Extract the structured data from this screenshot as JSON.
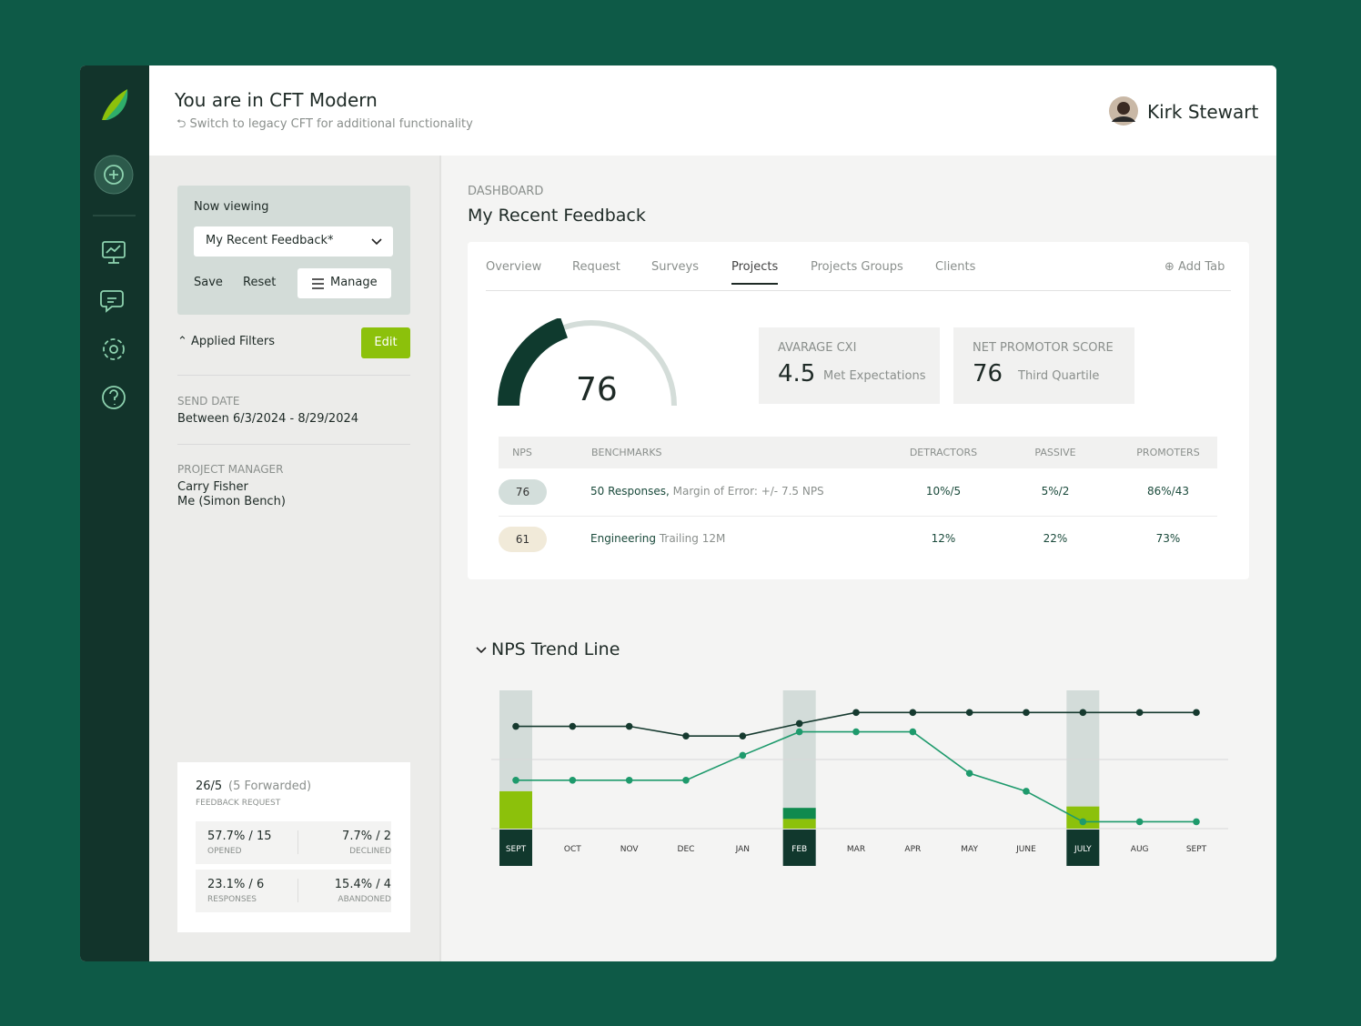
{
  "header": {
    "title": "You are in CFT Modern",
    "subtitle": "Switch to legacy CFT for additional functionality",
    "user": "Kirk Stewart"
  },
  "filters": {
    "now_viewing": "Now viewing",
    "view": "My Recent Feedback*",
    "save": "Save",
    "reset": "Reset",
    "manage": "Manage",
    "applied_filters": "Applied Filters",
    "edit": "Edit",
    "send_date": {
      "label": "SEND DATE",
      "value": "Between 6/3/2024 - 8/29/2024"
    },
    "project_manager": {
      "label": "PROJECT MANAGER",
      "values": [
        "Carry Fisher",
        "Me (Simon Bench)"
      ]
    }
  },
  "summary": {
    "count": "26/5",
    "forwarded": "(5 Forwarded)",
    "label": "FEEDBACK REQUEST",
    "stats": [
      {
        "value": "57.7% / 15",
        "label": "OPENED"
      },
      {
        "value": "7.7% / 2",
        "label": "DECLINED"
      },
      {
        "value": "23.1% / 6",
        "label": "RESPONSES"
      },
      {
        "value": "15.4% / 4",
        "label": "ABANDONED"
      }
    ]
  },
  "dashboard": {
    "breadcrumb": "DASHBOARD",
    "title": "My Recent Feedback",
    "tabs": [
      "Overview",
      "Request",
      "Surveys",
      "Projects",
      "Projects Groups",
      "Clients"
    ],
    "active_tab": 3,
    "add_tab": "Add Tab",
    "gauge_value": 76,
    "metrics": [
      {
        "label": "AVARAGE CXI",
        "value": 4.5,
        "note": "Met Expectations"
      },
      {
        "label": "NET PROMOTOR SCORE",
        "value": 76,
        "note": "Third Quartile"
      }
    ],
    "table": {
      "headers": [
        "NPS",
        "BENCHMARKS",
        "DETRACTORS",
        "PASSIVE",
        "PROMOTERS"
      ],
      "rows": [
        [
          76,
          "50 Responses,",
          "Margin of Error: +/- 7.5 NPS",
          "10%/5",
          "5%/2",
          "86%/43"
        ],
        [
          61,
          "Engineering",
          "Trailing 12M",
          "12%",
          "22%",
          "73%"
        ]
      ]
    }
  },
  "chart_data": {
    "type": "line",
    "title": "NPS Trend Line",
    "categories": [
      "SEPT",
      "OCT",
      "NOV",
      "DEC",
      "JAN",
      "FEB",
      "MAR",
      "APR",
      "MAY",
      "JUNE",
      "JULY",
      "AUG",
      "SEPT"
    ],
    "series": [
      {
        "color": "#163a2f",
        "values": [
          74,
          74,
          74,
          67,
          67,
          76,
          84,
          84,
          84,
          84,
          84,
          84,
          84
        ]
      },
      {
        "color": "#1e9a6c",
        "values": [
          35,
          35,
          35,
          35,
          53,
          70,
          70,
          70,
          40,
          27,
          5,
          5,
          5
        ]
      }
    ],
    "bars": [
      {
        "color": "#8cc10b",
        "values": [
          27,
          null,
          null,
          null,
          null,
          7,
          null,
          null,
          null,
          null,
          16,
          null,
          null
        ]
      },
      {
        "color": "#0f8a4e",
        "values": [
          null,
          null,
          null,
          null,
          null,
          8,
          null,
          null,
          null,
          null,
          null,
          null,
          null
        ]
      }
    ],
    "highlight": [
      0,
      5,
      10
    ],
    "ylim": [
      0,
      100
    ],
    "yticks": [
      0,
      50
    ],
    "grid": true
  }
}
